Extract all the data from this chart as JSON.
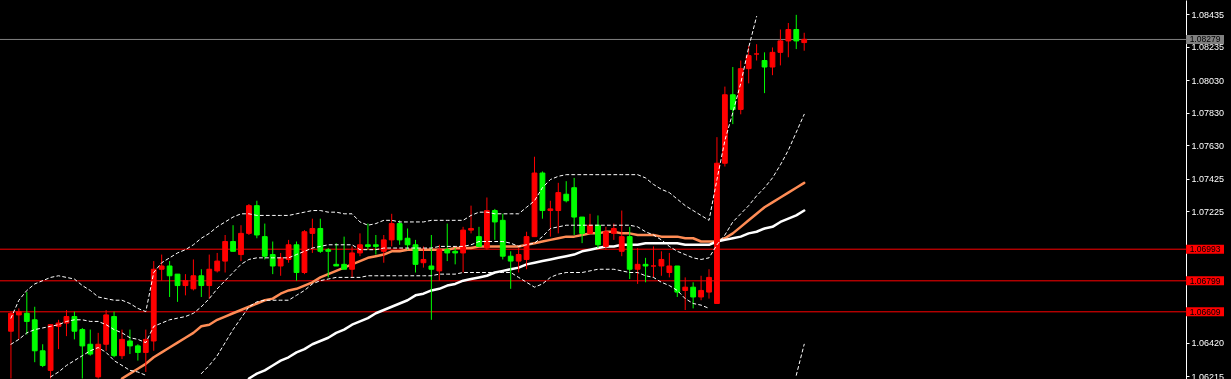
{
  "chart_data": {
    "type": "candlestick",
    "categories": [
      null,
      null,
      null,
      null,
      null,
      null,
      null,
      null,
      null,
      null,
      null,
      null,
      null,
      null,
      null,
      null,
      null,
      null,
      null,
      null,
      null,
      null,
      null,
      null,
      null,
      null,
      null,
      null,
      null,
      null,
      null,
      null,
      null,
      null,
      null,
      null,
      null,
      null,
      null,
      null,
      null,
      null,
      null,
      null,
      null,
      null,
      null,
      null,
      null,
      null,
      null,
      null,
      null,
      null,
      null,
      null,
      null,
      null,
      null,
      null,
      null,
      null,
      null,
      null,
      null,
      null,
      null,
      null,
      null,
      null,
      null,
      null,
      null,
      null,
      null,
      null,
      null,
      null,
      null,
      null,
      null,
      null,
      null,
      null,
      null,
      null,
      null,
      null,
      null,
      null,
      null,
      null,
      null,
      null,
      null,
      null,
      null,
      null,
      null,
      null,
      null
    ],
    "ohlc": [
      [
        1.0649,
        1.0661,
        1.062,
        1.066
      ],
      [
        1.0659,
        1.0663,
        1.0644,
        1.0661
      ],
      [
        1.066,
        1.0673,
        1.0647,
        1.0655
      ],
      [
        1.0656,
        1.0664,
        1.063,
        1.0637
      ],
      [
        1.0637,
        1.0641,
        1.0627,
        1.0628
      ],
      [
        1.0625,
        1.0653,
        1.062,
        1.0653
      ],
      [
        1.0652,
        1.0656,
        1.0638,
        1.0654
      ],
      [
        1.0654,
        1.0662,
        1.0646,
        1.0658
      ],
      [
        1.0658,
        1.0661,
        1.0644,
        1.0649
      ],
      [
        1.065,
        1.0651,
        1.062,
        1.064
      ],
      [
        1.0641,
        1.065,
        1.0634,
        1.0635
      ],
      [
        1.0621,
        1.0648,
        1.062,
        1.0641
      ],
      [
        1.0641,
        1.0662,
        1.0637,
        1.0659
      ],
      [
        1.0658,
        1.0661,
        1.0633,
        1.0634
      ],
      [
        1.0634,
        1.065,
        1.0632,
        1.0644
      ],
      [
        1.0643,
        1.065,
        1.0635,
        1.064
      ],
      [
        1.064,
        1.0641,
        1.0631,
        1.0636
      ],
      [
        1.0636,
        1.065,
        1.0624,
        1.0644
      ],
      [
        1.0643,
        1.0692,
        1.0637,
        1.0687
      ],
      [
        1.0687,
        1.0696,
        1.068,
        1.0689
      ],
      [
        1.0689,
        1.0692,
        1.067,
        1.0683
      ],
      [
        1.0684,
        1.0684,
        1.0667,
        1.0677
      ],
      [
        1.0677,
        1.0684,
        1.0671,
        1.068
      ],
      [
        1.0675,
        1.0693,
        1.0674,
        1.0683
      ],
      [
        1.0683,
        1.0687,
        1.067,
        1.0677
      ],
      [
        1.0677,
        1.0696,
        1.0669,
        1.0687
      ],
      [
        1.0686,
        1.0697,
        1.0685,
        1.0692
      ],
      [
        1.0692,
        1.0708,
        1.0685,
        1.0704
      ],
      [
        1.0704,
        1.0714,
        1.0698,
        1.0698
      ],
      [
        1.0696,
        1.0714,
        1.0692,
        1.0709
      ],
      [
        1.0709,
        1.0727,
        1.0708,
        1.0726
      ],
      [
        1.0726,
        1.0729,
        1.0706,
        1.0708
      ],
      [
        1.0707,
        1.0715,
        1.0693,
        1.0695
      ],
      [
        1.0696,
        1.0704,
        1.0684,
        1.0689
      ],
      [
        1.0689,
        1.0697,
        1.0683,
        1.0694
      ],
      [
        1.0693,
        1.0705,
        1.0691,
        1.0702
      ],
      [
        1.0702,
        1.0704,
        1.068,
        1.0685
      ],
      [
        1.0685,
        1.0711,
        1.0684,
        1.071
      ],
      [
        1.0709,
        1.0718,
        1.0697,
        1.0712
      ],
      [
        1.0712,
        1.0718,
        1.0697,
        1.0698
      ],
      [
        1.0699,
        1.07,
        1.0682,
        1.0698
      ],
      [
        1.069,
        1.0703,
        1.0689,
        1.0689
      ],
      [
        1.069,
        1.0707,
        1.0687,
        1.0687
      ],
      [
        1.0687,
        1.0701,
        1.0682,
        1.0697
      ],
      [
        1.0697,
        1.0709,
        1.0695,
        1.0702
      ],
      [
        1.0702,
        1.0715,
        1.0699,
        1.0701
      ],
      [
        1.0702,
        1.0708,
        1.0696,
        1.0701
      ],
      [
        1.0698,
        1.0708,
        1.0691,
        1.0705
      ],
      [
        1.0705,
        1.0721,
        1.0701,
        1.0715
      ],
      [
        1.0715,
        1.0717,
        1.0702,
        1.0705
      ],
      [
        1.0706,
        1.0712,
        1.0699,
        1.0702
      ],
      [
        1.0702,
        1.0705,
        1.0685,
        1.069
      ],
      [
        1.0691,
        1.0701,
        1.0688,
        1.0693
      ],
      [
        1.0689,
        1.0708,
        1.0656,
        1.0687
      ],
      [
        1.0686,
        1.0702,
        1.068,
        1.0699
      ],
      [
        1.0699,
        1.0715,
        1.0692,
        1.0697
      ],
      [
        1.0698,
        1.07,
        1.069,
        1.0697
      ],
      [
        1.0697,
        1.0713,
        1.0685,
        1.0711
      ],
      [
        1.0711,
        1.0726,
        1.0709,
        1.0712
      ],
      [
        1.0707,
        1.0713,
        1.0701,
        1.0701
      ],
      [
        1.07,
        1.0731,
        1.0699,
        1.0723
      ],
      [
        1.0723,
        1.0724,
        1.0705,
        1.0716
      ],
      [
        1.0717,
        1.0721,
        1.0693,
        1.0695
      ],
      [
        1.0695,
        1.0698,
        1.0675,
        1.0692
      ],
      [
        1.0692,
        1.07,
        1.0685,
        1.0696
      ],
      [
        1.0693,
        1.071,
        1.0687,
        1.0707
      ],
      [
        1.0707,
        1.0756,
        1.0707,
        1.0746
      ],
      [
        1.0746,
        1.0747,
        1.0718,
        1.0723
      ],
      [
        1.0723,
        1.0729,
        1.0707,
        1.0724
      ],
      [
        1.0723,
        1.074,
        1.0709,
        1.0734
      ],
      [
        1.0733,
        1.0741,
        1.0728,
        1.0729
      ],
      [
        1.0737,
        1.0743,
        1.0708,
        1.0719
      ],
      [
        1.0719,
        1.0719,
        1.0703,
        1.0709
      ],
      [
        1.0709,
        1.0721,
        1.0709,
        1.0714
      ],
      [
        1.0714,
        1.072,
        1.07,
        1.0702
      ],
      [
        1.0701,
        1.0713,
        1.0699,
        1.071
      ],
      [
        1.0709,
        1.0715,
        1.0705,
        1.0712
      ],
      [
        1.0698,
        1.0723,
        1.0695,
        1.0707
      ],
      [
        1.0707,
        1.0713,
        1.0681,
        1.0687
      ],
      [
        1.0687,
        1.07,
        1.0678,
        1.069
      ],
      [
        1.069,
        1.0694,
        1.0679,
        1.0689
      ],
      [
        1.0689,
        1.0701,
        1.0682,
        1.0689
      ],
      [
        1.0689,
        1.0698,
        1.0683,
        1.0693
      ],
      [
        1.0685,
        1.0697,
        1.0682,
        1.0689
      ],
      [
        1.0689,
        1.0689,
        1.067,
        1.0673
      ],
      [
        1.0674,
        1.0682,
        1.0662,
        1.0676
      ],
      [
        1.0676,
        1.0679,
        1.0663,
        1.067
      ],
      [
        1.067,
        1.0683,
        1.0668,
        1.0674
      ],
      [
        1.0673,
        1.0687,
        1.0669,
        1.0682
      ],
      [
        1.0666,
        1.0768,
        1.0666,
        1.0752
      ],
      [
        1.0752,
        1.0799,
        1.075,
        1.0794
      ],
      [
        1.0794,
        1.0811,
        1.0776,
        1.0785
      ],
      [
        1.0785,
        1.0815,
        1.0782,
        1.081
      ],
      [
        1.081,
        1.0824,
        1.0801,
        1.0818
      ],
      [
        1.0819,
        1.0825,
        1.0815,
        1.0819
      ],
      [
        1.0815,
        1.082,
        1.0795,
        1.0811
      ],
      [
        1.0811,
        1.0823,
        1.0806,
        1.082
      ],
      [
        1.082,
        1.0834,
        1.0812,
        1.0827
      ],
      [
        1.0827,
        1.0838,
        1.0817,
        1.0834
      ],
      [
        1.0834,
        1.0843,
        1.0822,
        1.0827
      ],
      [
        1.0826,
        1.0832,
        1.0821,
        1.0828
      ]
    ],
    "colors": [
      "#ff0000",
      "#ff0000",
      "#00ff00",
      "#00ff00",
      "#00ff00",
      "#ff0000",
      "#ff0000",
      "#ff0000",
      "#00ff00",
      "#00ff00",
      "#00ff00",
      "#ff0000",
      "#ff0000",
      "#00ff00",
      "#ff0000",
      "#00ff00",
      "#00ff00",
      "#ff0000",
      "#ff0000",
      "#ff0000",
      "#00ff00",
      "#00ff00",
      "#ff0000",
      "#ff0000",
      "#00ff00",
      "#ff0000",
      "#ff0000",
      "#ff0000",
      "#00ff00",
      "#ff0000",
      "#ff0000",
      "#00ff00",
      "#00ff00",
      "#00ff00",
      "#ff0000",
      "#ff0000",
      "#00ff00",
      "#ff0000",
      "#ff0000",
      "#00ff00",
      "#00ff00",
      "#00ff00",
      "#00ff00",
      "#ff0000",
      "#ff0000",
      "#00ff00",
      "#00ff00",
      "#ff0000",
      "#ff0000",
      "#00ff00",
      "#00ff00",
      "#00ff00",
      "#ff0000",
      "#00ff00",
      "#ff0000",
      "#00ff00",
      "#00ff00",
      "#ff0000",
      "#ff0000",
      "#00ff00",
      "#ff0000",
      "#00ff00",
      "#00ff00",
      "#00ff00",
      "#ff0000",
      "#ff0000",
      "#ff0000",
      "#00ff00",
      "#ff0000",
      "#ff0000",
      "#00ff00",
      "#00ff00",
      "#00ff00",
      "#ff0000",
      "#00ff00",
      "#ff0000",
      "#ff0000",
      "#ff0000",
      "#00ff00",
      "#ff0000",
      "#00ff00",
      "#ff0000",
      "#ff0000",
      "#ff0000",
      "#00ff00",
      "#ff0000",
      "#00ff00",
      "#ff0000",
      "#ff0000",
      "#ff0000",
      "#ff0000",
      "#00ff00",
      "#ff0000",
      "#ff0000",
      "#ff0000",
      "#00ff00",
      "#ff0000",
      "#ff0000",
      "#ff0000",
      "#00ff00",
      "#ff0000"
    ],
    "series": [
      {
        "type": "line",
        "color": "#ff8c55",
        "values": [
          null,
          null,
          null,
          null,
          null,
          null,
          null,
          null,
          null,
          null,
          null,
          null,
          null,
          null,
          1.062,
          1.0623,
          1.0626,
          1.0629,
          1.0633,
          1.0636,
          1.0639,
          1.0642,
          1.0645,
          1.0648,
          1.0652,
          1.0653,
          1.0656,
          1.0658,
          1.066,
          1.0662,
          1.0664,
          1.0666,
          1.0668,
          1.0669,
          1.0672,
          1.0674,
          1.0675,
          1.0677,
          1.0679,
          1.0682,
          1.0684,
          1.0686,
          1.0688,
          1.069,
          1.0692,
          1.0694,
          1.0695,
          1.0696,
          1.0698,
          1.0698,
          1.0699,
          1.0699,
          1.0699,
          1.0699,
          1.0699,
          1.0699,
          1.07,
          1.07,
          1.07,
          1.0701,
          1.0701,
          1.0701,
          1.0701,
          1.0701,
          1.0701,
          1.0702,
          1.0703,
          1.0704,
          1.0705,
          1.0706,
          1.0707,
          1.0707,
          1.0708,
          1.0709,
          1.0709,
          1.071,
          1.071,
          1.0709,
          1.0709,
          1.0708,
          1.0708,
          1.0708,
          1.0707,
          1.0707,
          1.0707,
          1.0706,
          1.0706,
          1.0704,
          1.0704,
          1.0704,
          1.0706,
          1.0709,
          1.0713,
          1.0717,
          1.0721,
          1.0725,
          1.0728,
          1.0731,
          1.0734,
          1.0737,
          1.074
        ]
      },
      {
        "type": "line",
        "color": "#ffffff",
        "values": [
          null,
          null,
          null,
          null,
          null,
          null,
          null,
          null,
          null,
          null,
          null,
          null,
          null,
          null,
          null,
          null,
          null,
          null,
          null,
          null,
          null,
          null,
          null,
          null,
          null,
          null,
          null,
          null,
          null,
          null,
          1.062,
          1.0623,
          1.0625,
          1.0628,
          1.0631,
          1.0633,
          1.0636,
          1.0638,
          1.0641,
          1.0643,
          1.0645,
          1.0648,
          1.065,
          1.0653,
          1.0655,
          1.0657,
          1.066,
          1.0662,
          1.0664,
          1.0666,
          1.0668,
          1.0671,
          1.0672,
          1.0674,
          1.0675,
          1.0677,
          1.0678,
          1.068,
          1.0681,
          1.0682,
          1.0683,
          1.0685,
          1.0686,
          1.0687,
          1.0688,
          1.069,
          1.0691,
          1.0692,
          1.0693,
          1.0694,
          1.0695,
          1.0696,
          1.0698,
          1.0699,
          1.07,
          1.0701,
          1.0701,
          1.0702,
          1.0702,
          1.0702,
          1.0703,
          1.0703,
          1.0703,
          1.0703,
          1.0703,
          1.0702,
          1.0702,
          1.0702,
          1.0702,
          1.0704,
          1.0705,
          1.0706,
          1.0707,
          1.0709,
          1.071,
          1.0712,
          1.0713,
          1.0716,
          1.0718,
          1.072,
          1.0723
        ]
      },
      {
        "type": "line",
        "color": "#ffffff",
        "line_style": "dashed",
        "values": [
          1.0657,
          1.0668,
          1.0674,
          1.0678,
          1.068,
          1.0682,
          1.0683,
          1.0682,
          1.0681,
          1.0677,
          1.0674,
          1.067,
          1.0669,
          1.0668,
          1.0668,
          1.0666,
          1.0663,
          1.0661,
          1.0685,
          1.0691,
          1.0694,
          1.0697,
          1.0699,
          1.0702,
          1.0706,
          1.0709,
          1.0713,
          1.0716,
          1.0719,
          1.0721,
          1.0721,
          1.072,
          1.072,
          1.072,
          1.072,
          1.072,
          1.0721,
          1.0722,
          1.0723,
          1.0723,
          1.0722,
          1.0722,
          1.0721,
          1.0721,
          1.0716,
          1.0714,
          1.0715,
          1.0717,
          1.0717,
          1.0716,
          1.0716,
          1.0716,
          1.0716,
          1.0717,
          1.0717,
          1.0717,
          1.0717,
          1.0717,
          1.072,
          1.0722,
          1.0722,
          1.0721,
          1.0721,
          1.0721,
          1.0721,
          1.0725,
          1.0729,
          1.0737,
          1.0742,
          1.0744,
          1.0745,
          1.0745,
          1.0745,
          1.0745,
          1.0745,
          1.0745,
          1.0745,
          1.0745,
          1.0745,
          1.0745,
          1.0743,
          1.0739,
          1.0736,
          1.0734,
          1.073,
          1.0726,
          1.0723,
          1.072,
          1.0717,
          1.0742,
          1.0766,
          1.0783,
          1.0801,
          1.0823,
          1.0842,
          null,
          null,
          null,
          null,
          null,
          null
        ]
      },
      {
        "type": "line",
        "color": "#ffffff",
        "line_style": "dashed",
        "values": [
          1.0641,
          1.0644,
          1.0648,
          1.065,
          1.0651,
          1.0652,
          1.0653,
          1.0655,
          1.0656,
          1.0656,
          1.0655,
          1.0655,
          1.0653,
          1.065,
          1.0648,
          1.0645,
          1.0644,
          1.0642,
          1.0652,
          1.0654,
          1.0656,
          1.0657,
          1.0658,
          1.066,
          1.0664,
          1.0669,
          1.0675,
          1.068,
          1.0685,
          1.069,
          1.0693,
          1.0694,
          1.0694,
          1.0694,
          1.0694,
          1.0694,
          1.0696,
          1.0698,
          1.07,
          1.0701,
          1.0702,
          1.0702,
          1.0702,
          1.0702,
          1.0699,
          1.0699,
          1.0699,
          1.07,
          1.07,
          1.07,
          1.07,
          1.07,
          1.07,
          1.07,
          1.0701,
          1.0701,
          1.0701,
          1.0701,
          1.0702,
          1.0704,
          1.0704,
          1.0704,
          1.0704,
          1.0703,
          1.0701,
          1.0702,
          1.0703,
          1.0707,
          1.0712,
          1.0713,
          1.0714,
          1.0714,
          1.0714,
          1.0714,
          1.0714,
          1.0714,
          1.0714,
          1.0714,
          1.0714,
          1.0713,
          1.071,
          1.0708,
          1.0705,
          1.0701,
          1.0698,
          1.0696,
          1.0694,
          1.0693,
          1.0694,
          1.0702,
          1.0708,
          1.0716,
          1.0721,
          1.0726,
          1.0732,
          1.0737,
          1.0743,
          1.0751,
          1.076,
          1.0771,
          1.0782
        ]
      },
      {
        "type": "line",
        "color": "#ffffff",
        "line_style": "dashed",
        "values": [
          null,
          null,
          null,
          null,
          null,
          1.0621,
          1.0624,
          1.0628,
          1.0631,
          1.0634,
          1.0637,
          1.0639,
          1.0636,
          1.0631,
          1.0628,
          1.0625,
          1.0624,
          1.0622,
          null,
          null,
          null,
          null,
          null,
          null,
          1.0623,
          1.0628,
          1.0634,
          1.0642,
          1.065,
          1.0657,
          1.0664,
          1.0667,
          1.0668,
          1.0668,
          1.0668,
          1.0668,
          1.0671,
          1.0674,
          1.0678,
          1.068,
          1.0681,
          1.0682,
          1.0682,
          1.0682,
          1.0682,
          1.0683,
          1.0683,
          1.0683,
          1.0683,
          1.0683,
          1.0683,
          1.0683,
          1.0683,
          1.0683,
          1.0684,
          1.0684,
          1.0684,
          1.0685,
          1.0685,
          1.0685,
          1.0685,
          1.0685,
          1.0685,
          1.0685,
          1.0682,
          1.0679,
          1.0676,
          1.0678,
          1.0682,
          1.0684,
          1.0685,
          1.0685,
          1.0685,
          1.0686,
          1.0687,
          1.0687,
          1.0687,
          1.0686,
          1.0685,
          1.0685,
          1.0683,
          1.0682,
          1.0679,
          1.0677,
          1.0674,
          1.0669,
          1.0666,
          1.0665,
          1.0663,
          null,
          null,
          null,
          null,
          null,
          null,
          null,
          null,
          null,
          null,
          1.0622,
          1.0641
        ]
      }
    ],
    "ylim": [
      1.06197,
      1.08521
    ],
    "yticks": [
      {
        "value": 1.08435,
        "label": "1.08435"
      },
      {
        "value": 1.08235,
        "label": "1.08235"
      },
      {
        "value": 1.0803,
        "label": "1.08030"
      },
      {
        "value": 1.0783,
        "label": "1.07830"
      },
      {
        "value": 1.0763,
        "label": "1.07630"
      },
      {
        "value": 1.07425,
        "label": "1.07425"
      },
      {
        "value": 1.07225,
        "label": "1.07225"
      },
      {
        "value": 1.0642,
        "label": "1.06420"
      },
      {
        "value": 1.06215,
        "label": "1.06215"
      }
    ],
    "ref_lines": [
      {
        "axis": "y",
        "value": 1.08279,
        "label": "1.08279",
        "color": "#808080"
      },
      {
        "axis": "y",
        "value": 1.06993,
        "label": "1.06993",
        "color": "#ff0000"
      },
      {
        "axis": "y",
        "value": 1.06799,
        "label": "1.06799",
        "color": "#ff0000"
      },
      {
        "axis": "y",
        "value": 1.06609,
        "label": "1.06609",
        "color": "#ff0000"
      }
    ],
    "tick_labels": "y"
  }
}
